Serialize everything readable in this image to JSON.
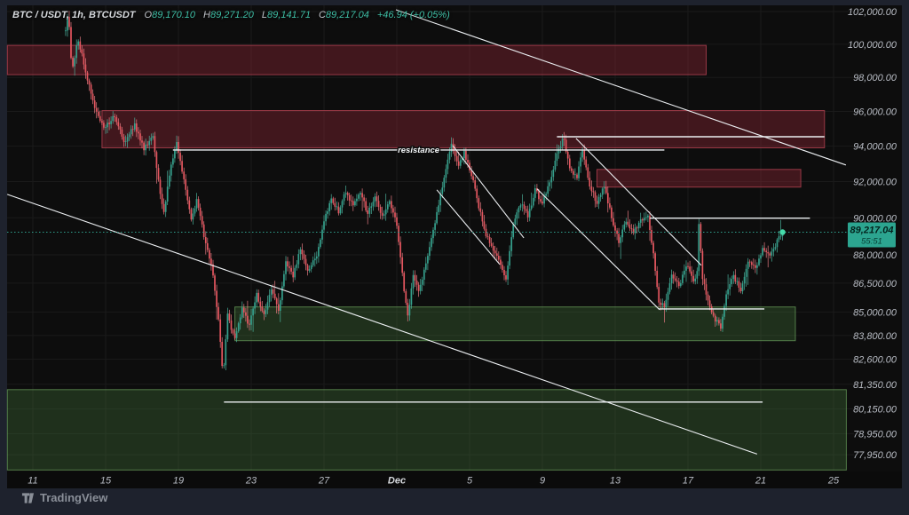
{
  "header": {
    "title": "BTC / USDT, 1h, BTCUSDT",
    "o_label": "O",
    "o": "89,170.10",
    "h_label": "H",
    "h": "89,271.20",
    "l_label": "L",
    "l": "89,141.71",
    "c_label": "C",
    "c": "89,217.04",
    "change": "+46.94 (+0.05%)"
  },
  "footer": {
    "brand": "TradingView"
  },
  "price_scale": {
    "last_price_label": "89,217.04",
    "countdown": "55:51",
    "tick_labels": [
      "102,000.00",
      "100,000.00",
      "98,000.00",
      "96,000.00",
      "94,000.00",
      "92,000.00",
      "90,000.00",
      "88,000.00",
      "86,500.00",
      "85,000.00",
      "83,800.00",
      "82,600.00",
      "81,350.00",
      "80,150.00",
      "78,950.00",
      "77,950.00"
    ]
  },
  "colors": {
    "frame": "#1e222d",
    "chart_bg": "#0d0d0d",
    "grid": "rgba(255,255,255,0.055)",
    "up": "#35a08c",
    "down": "#e4565f",
    "up_wick": "#4db6a0",
    "down_wick": "#ef7f88",
    "supply_fill": "rgba(150,40,55,0.38)",
    "supply_stroke": "rgba(190,70,85,0.75)",
    "demand_fill": "rgba(80,140,70,0.28)",
    "demand_stroke": "rgba(115,175,100,0.65)",
    "white_line": "#eceff2",
    "price_line": "#2f9e8b",
    "badge_bg": "#2ca590",
    "badge_text": "#03231d",
    "axis_text": "#b9bdc5",
    "dot": "#45dcab"
  },
  "chart_data": {
    "type": "candlestick",
    "symbol": "BTCUSDT",
    "interval": "1h",
    "title": "BTC / USDT 1h chart with supply/demand zones and trendlines",
    "y_axis": {
      "scale": "log",
      "ticks": [
        102000,
        100000,
        98000,
        96000,
        94000,
        92000,
        90000,
        88000,
        86500,
        85000,
        83800,
        82600,
        81350,
        80150,
        78950,
        77950
      ]
    },
    "x_axis": {
      "unit": "day-index (Nov; 31 = Dec 1)",
      "ticks": [
        {
          "label": "11",
          "day": 11
        },
        {
          "label": "15",
          "day": 15
        },
        {
          "label": "19",
          "day": 19
        },
        {
          "label": "23",
          "day": 23
        },
        {
          "label": "27",
          "day": 27
        },
        {
          "label": "Dec",
          "day": 31,
          "emphasis": true
        },
        {
          "label": "5",
          "day": 35
        },
        {
          "label": "9",
          "day": 39
        },
        {
          "label": "13",
          "day": 43
        },
        {
          "label": "17",
          "day": 47
        },
        {
          "label": "21",
          "day": 51
        },
        {
          "label": "25",
          "day": 55
        }
      ]
    },
    "last_price": 89217.04,
    "price_path_format": "[day_index, price] keyframes of the hourly close path",
    "price_path": [
      [
        12.8,
        100800
      ],
      [
        12.95,
        102100
      ],
      [
        13.15,
        98200
      ],
      [
        13.45,
        100400
      ],
      [
        13.8,
        98900
      ],
      [
        14.3,
        96500
      ],
      [
        14.9,
        95000
      ],
      [
        15.5,
        95800
      ],
      [
        16.0,
        94200
      ],
      [
        16.6,
        95200
      ],
      [
        17.1,
        93800
      ],
      [
        17.6,
        94600
      ],
      [
        17.9,
        92000
      ],
      [
        18.2,
        90300
      ],
      [
        18.5,
        92400
      ],
      [
        18.9,
        94100
      ],
      [
        19.3,
        92000
      ],
      [
        19.7,
        89900
      ],
      [
        20.0,
        91000
      ],
      [
        20.5,
        88600
      ],
      [
        20.9,
        87000
      ],
      [
        21.2,
        84500
      ],
      [
        21.45,
        81800
      ],
      [
        21.7,
        84800
      ],
      [
        22.1,
        83600
      ],
      [
        22.5,
        85200
      ],
      [
        22.9,
        84300
      ],
      [
        23.3,
        85900
      ],
      [
        23.7,
        84800
      ],
      [
        24.1,
        86200
      ],
      [
        24.5,
        85000
      ],
      [
        24.9,
        87600
      ],
      [
        25.3,
        86800
      ],
      [
        25.7,
        88300
      ],
      [
        26.1,
        87200
      ],
      [
        26.6,
        88000
      ],
      [
        27.0,
        89800
      ],
      [
        27.4,
        91000
      ],
      [
        27.8,
        90300
      ],
      [
        28.2,
        91500
      ],
      [
        28.6,
        90600
      ],
      [
        29.0,
        91400
      ],
      [
        29.4,
        90200
      ],
      [
        29.8,
        91200
      ],
      [
        30.2,
        90000
      ],
      [
        30.6,
        91000
      ],
      [
        31.0,
        89600
      ],
      [
        31.35,
        86500
      ],
      [
        31.6,
        84700
      ],
      [
        31.9,
        86900
      ],
      [
        32.2,
        86000
      ],
      [
        32.6,
        87600
      ],
      [
        33.0,
        89300
      ],
      [
        33.5,
        91800
      ],
      [
        34.0,
        94200
      ],
      [
        34.35,
        92800
      ],
      [
        34.7,
        93600
      ],
      [
        35.1,
        92400
      ],
      [
        35.5,
        90600
      ],
      [
        35.9,
        89000
      ],
      [
        36.3,
        88300
      ],
      [
        36.7,
        87500
      ],
      [
        37.0,
        86800
      ],
      [
        37.4,
        89600
      ],
      [
        37.8,
        90800
      ],
      [
        38.2,
        90100
      ],
      [
        38.6,
        91500
      ],
      [
        39.0,
        90800
      ],
      [
        39.4,
        91900
      ],
      [
        39.8,
        93500
      ],
      [
        40.15,
        94500
      ],
      [
        40.5,
        92800
      ],
      [
        40.9,
        92200
      ],
      [
        41.2,
        93900
      ],
      [
        41.6,
        91800
      ],
      [
        42.0,
        90800
      ],
      [
        42.4,
        91800
      ],
      [
        42.8,
        90000
      ],
      [
        43.2,
        88700
      ],
      [
        43.6,
        89900
      ],
      [
        44.0,
        89200
      ],
      [
        44.4,
        89800
      ],
      [
        44.8,
        90100
      ],
      [
        45.1,
        88000
      ],
      [
        45.4,
        85600
      ],
      [
        45.7,
        85200
      ],
      [
        46.1,
        87000
      ],
      [
        46.5,
        86300
      ],
      [
        46.9,
        87500
      ],
      [
        47.3,
        86500
      ],
      [
        47.5,
        87200
      ],
      [
        47.62,
        90100
      ],
      [
        47.75,
        87000
      ],
      [
        48.1,
        85600
      ],
      [
        48.5,
        84600
      ],
      [
        48.8,
        84200
      ],
      [
        49.1,
        86000
      ],
      [
        49.5,
        86800
      ],
      [
        49.9,
        86200
      ],
      [
        50.3,
        87700
      ],
      [
        50.7,
        87200
      ],
      [
        51.1,
        88400
      ],
      [
        51.5,
        87900
      ],
      [
        51.9,
        88700
      ],
      [
        52.2,
        89217
      ]
    ],
    "zones": [
      {
        "kind": "supply",
        "price_from": 98170,
        "price_to": 99930,
        "day_from": 9.6,
        "day_to": 48.0
      },
      {
        "kind": "supply",
        "price_from": 93900,
        "price_to": 96050,
        "day_from": 14.8,
        "day_to": 54.5
      },
      {
        "kind": "supply",
        "price_from": 91690,
        "price_to": 92680,
        "day_from": 42.0,
        "day_to": 53.2
      },
      {
        "kind": "demand",
        "price_from": 83530,
        "price_to": 85260,
        "day_from": 22.1,
        "day_to": 52.9
      },
      {
        "kind": "demand",
        "price_from": 77230,
        "price_to": 81090,
        "day_from": 9.6,
        "day_to": 55.7
      }
    ],
    "hlines": [
      {
        "price": 93780,
        "day_from": 18.7,
        "day_to": 45.7,
        "label": "resistance",
        "label_day": 32.2
      },
      {
        "price": 94540,
        "day_from": 39.8,
        "day_to": 54.5
      },
      {
        "price": 89980,
        "day_from": 44.9,
        "day_to": 53.7
      },
      {
        "price": 85160,
        "day_from": 45.4,
        "day_to": 51.2
      },
      {
        "price": 80480,
        "day_from": 21.5,
        "day_to": 51.1
      }
    ],
    "trendlines": [
      {
        "day_from": 30.95,
        "price_from": 102110,
        "day_to": 55.68,
        "price_to": 92930
      },
      {
        "day_from": 9.59,
        "price_from": 91290,
        "day_to": 50.8,
        "price_to": 77980
      },
      {
        "day_from": 34.07,
        "price_from": 94040,
        "day_to": 37.98,
        "price_to": 88910
      },
      {
        "day_from": 33.2,
        "price_from": 91540,
        "day_to": 36.66,
        "price_to": 87490
      },
      {
        "day_from": 40.85,
        "price_from": 94440,
        "day_to": 47.73,
        "price_to": 87440
      },
      {
        "day_from": 38.71,
        "price_from": 91590,
        "day_to": 45.44,
        "price_to": 85120
      }
    ]
  }
}
